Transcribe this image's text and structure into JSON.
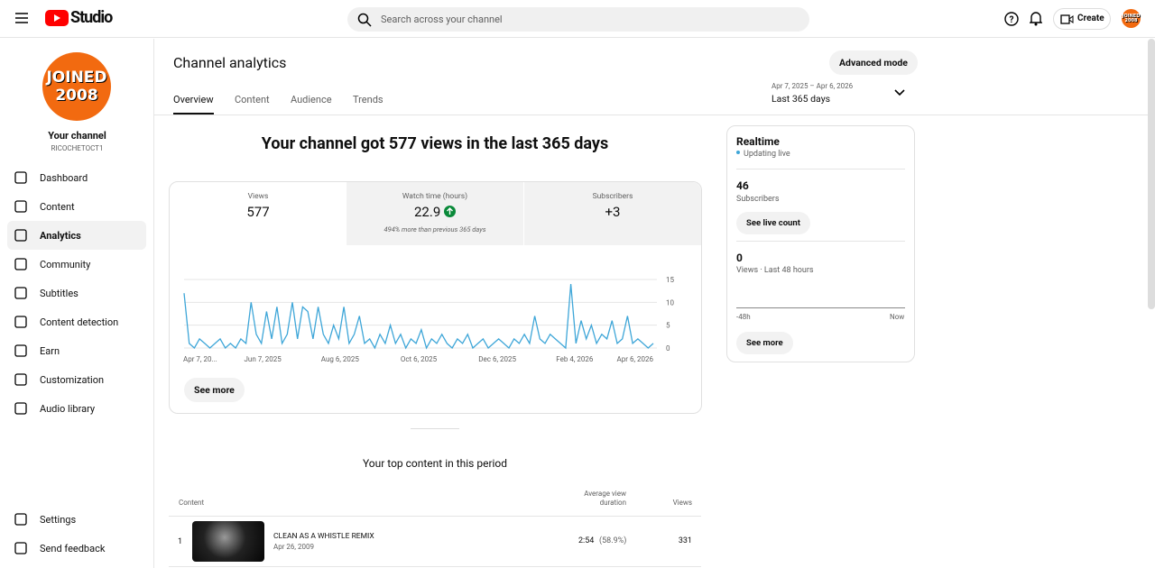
{
  "header": {
    "logo": "Studio",
    "search": "Search across your channel",
    "create": "Create",
    "avatar": [
      "JOINED",
      "2008"
    ]
  },
  "sidebar": {
    "avatar": [
      "JOINED",
      "2008"
    ],
    "channel_title": "Your channel",
    "channel_handle": "RICOCHETOCT1",
    "nav": [
      "Dashboard",
      "Content",
      "Analytics",
      "Community",
      "Subtitles",
      "Content detection",
      "Earn",
      "Customization",
      "Audio library"
    ],
    "bottom": [
      "Settings",
      "Send feedback"
    ]
  },
  "main": {
    "title": "Channel analytics",
    "advanced": "Advanced mode",
    "tabs": [
      "Overview",
      "Content",
      "Audience",
      "Trends"
    ],
    "date_range": "Apr 7, 2025 – Apr 6, 2026",
    "date_label": "Last 365 days",
    "headline": "Your channel got 577 views in the last 365 days",
    "metrics": [
      {
        "label": "Views",
        "value": "577"
      },
      {
        "label": "Watch time (hours)",
        "value": "22.9",
        "note": "494% more than previous 365 days"
      },
      {
        "label": "Subscribers",
        "value": "+3"
      }
    ],
    "see_more": "See more"
  },
  "realtime": {
    "title": "Realtime",
    "status": "Updating live",
    "subs": "46",
    "subs_label": "Subscribers",
    "live_button": "See live count",
    "views": "0",
    "views_label": "Views · Last 48 hours",
    "start": "-48h",
    "end": "Now",
    "see_more": "See more"
  },
  "top_content": {
    "heading": "Your top content in this period",
    "columns": [
      "Content",
      "Average view duration",
      "Views"
    ],
    "rows": [
      {
        "rank": "1",
        "title": "CLEAN AS A WHISTLE REMIX",
        "date": "Apr 26, 2009",
        "duration": "2:54",
        "percent": "(58.9%)",
        "views": "331"
      }
    ]
  },
  "chart_data": {
    "type": "line",
    "color": "#3ea6d8",
    "x": [
      0,
      4,
      8,
      12,
      16,
      20,
      24,
      28,
      32,
      36,
      40,
      44,
      48,
      52,
      56,
      60,
      64,
      68,
      72,
      76,
      80,
      84,
      88,
      92,
      96,
      100,
      104,
      108,
      112,
      116,
      120,
      124,
      128,
      132,
      136,
      140,
      144,
      148,
      152,
      156,
      160,
      164,
      168,
      172,
      176,
      180,
      184,
      188,
      192,
      196,
      200,
      204,
      208,
      212,
      216,
      220,
      224,
      228,
      232,
      236,
      240,
      244,
      248,
      252,
      256,
      260,
      264,
      268,
      272,
      276,
      280,
      284,
      288,
      292,
      296,
      300,
      304,
      308,
      312,
      316,
      320,
      324,
      328,
      332,
      336,
      340,
      344,
      348,
      352,
      356,
      360,
      364
    ],
    "values": [
      12,
      1,
      0,
      2,
      1,
      0,
      1,
      2,
      0,
      1,
      0,
      2,
      1,
      10,
      3,
      1,
      8,
      2,
      9,
      1,
      3,
      10,
      2,
      9,
      8,
      2,
      9,
      3,
      1,
      5,
      2,
      9,
      1,
      3,
      7,
      1,
      2,
      0,
      3,
      1,
      5,
      1,
      3,
      0,
      2,
      1,
      4,
      0,
      2,
      1,
      3,
      1,
      0,
      2,
      1,
      3,
      0,
      1,
      2,
      0,
      1,
      2,
      1,
      0,
      2,
      1,
      3,
      1,
      7,
      2,
      1,
      3,
      2,
      1,
      0,
      14,
      1,
      6,
      2,
      5,
      1,
      3,
      2,
      6,
      1,
      2,
      7,
      1,
      2,
      1,
      0,
      1
    ],
    "xlim": [
      0,
      364
    ],
    "ylim": [
      0,
      15
    ],
    "yticks": [
      0,
      5,
      10,
      15
    ],
    "grid": true,
    "xticks": [
      {
        "value": 0,
        "label": "Apr 7, 20..."
      },
      {
        "value": 61,
        "label": "Jun 7, 2025"
      },
      {
        "value": 121,
        "label": "Aug 6, 2025"
      },
      {
        "value": 182,
        "label": "Oct 6, 2025"
      },
      {
        "value": 243,
        "label": "Dec 6, 2025"
      },
      {
        "value": 303,
        "label": "Feb 4, 2026"
      },
      {
        "value": 364,
        "label": "Apr 6, 2026"
      }
    ]
  }
}
